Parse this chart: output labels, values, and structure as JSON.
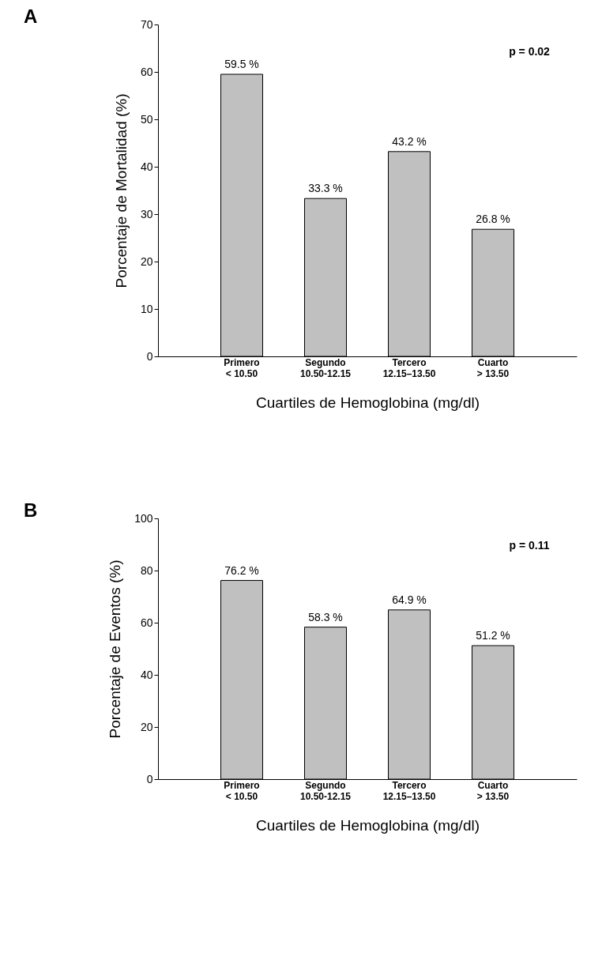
{
  "chart_data": [
    {
      "type": "bar",
      "title": "A",
      "categories": [
        "Primero\n< 10.50",
        "Segundo\n10.50-12.15",
        "Tercero\n12.15–13.50",
        "Cuarto\n> 13.50"
      ],
      "values": [
        59.5,
        33.3,
        43.2,
        26.8
      ],
      "value_labels": [
        "59.5 %",
        "33.3 %",
        "43.2 %",
        "26.8 %"
      ],
      "color": "#c0c0c0",
      "ylim": [
        0,
        70
      ],
      "yticks": [
        0,
        10,
        20,
        30,
        40,
        50,
        60,
        70
      ],
      "ylabel": "Porcentaje de Mortalidad (%)",
      "xlabel": "Cuartiles de Hemoglobina (mg/dl)",
      "annotations": [
        "p = 0.02"
      ],
      "grid": false
    },
    {
      "type": "bar",
      "title": "B",
      "categories": [
        "Primero\n< 10.50",
        "Segundo\n10.50-12.15",
        "Tercero\n12.15–13.50",
        "Cuarto\n> 13.50"
      ],
      "values": [
        76.2,
        58.3,
        64.9,
        51.2
      ],
      "value_labels": [
        "76.2 %",
        "58.3 %",
        "64.9 %",
        "51.2 %"
      ],
      "color": "#c0c0c0",
      "ylim": [
        0,
        100
      ],
      "yticks": [
        0,
        20,
        40,
        60,
        80,
        100
      ],
      "ylabel": "Porcentaje de Eventos (%)",
      "xlabel": "Cuartiles de Hemoglobina (mg/dl)",
      "annotations": [
        "p = 0.11"
      ],
      "grid": false
    }
  ]
}
